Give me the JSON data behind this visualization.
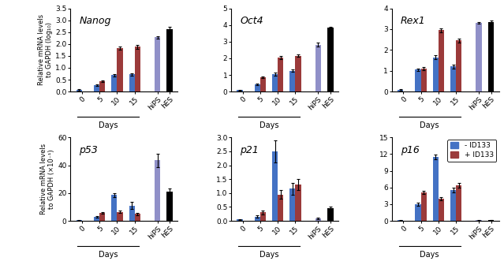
{
  "subplots": [
    {
      "title": "Nanog",
      "ylabel": "Relative mRNA levels\nto GAPDH (log₁₀)",
      "ylim": [
        0,
        3.5
      ],
      "yticks": [
        0.0,
        0.5,
        1.0,
        1.5,
        2.0,
        2.5,
        3.0,
        3.5
      ],
      "bar_groups": [
        {
          "label": "0",
          "minus": 0.08,
          "plus": null,
          "minus_err": 0.04,
          "plus_err": null
        },
        {
          "label": "5",
          "minus": 0.28,
          "plus": 0.43,
          "minus_err": 0.04,
          "plus_err": 0.04
        },
        {
          "label": "10",
          "minus": 0.7,
          "plus": 1.82,
          "minus_err": 0.05,
          "plus_err": 0.07
        },
        {
          "label": "15",
          "minus": 0.73,
          "plus": 1.88,
          "minus_err": 0.05,
          "plus_err": 0.07
        },
        {
          "label": "hiPS",
          "minus": 2.28,
          "plus": null,
          "minus_err": 0.04,
          "plus_err": null
        },
        {
          "label": "hES",
          "minus": 2.63,
          "plus": null,
          "minus_err": 0.08,
          "plus_err": null
        }
      ],
      "row": 0,
      "col": 0
    },
    {
      "title": "Oct4",
      "ylabel": null,
      "ylim": [
        0,
        5.0
      ],
      "yticks": [
        0.0,
        1.0,
        2.0,
        3.0,
        4.0,
        5.0
      ],
      "bar_groups": [
        {
          "label": "0",
          "minus": 0.08,
          "plus": null,
          "minus_err": 0.03,
          "plus_err": null
        },
        {
          "label": "5",
          "minus": 0.43,
          "plus": 0.88,
          "minus_err": 0.05,
          "plus_err": 0.05
        },
        {
          "label": "10",
          "minus": 1.05,
          "plus": 2.05,
          "minus_err": 0.1,
          "plus_err": 0.1
        },
        {
          "label": "15",
          "minus": 1.25,
          "plus": 2.15,
          "minus_err": 0.08,
          "plus_err": 0.08
        },
        {
          "label": "hiPS",
          "minus": 2.82,
          "plus": null,
          "minus_err": 0.1,
          "plus_err": null
        },
        {
          "label": "hES",
          "minus": 3.82,
          "plus": null,
          "minus_err": 0.08,
          "plus_err": null
        }
      ],
      "row": 0,
      "col": 1
    },
    {
      "title": "Rex1",
      "ylabel": null,
      "ylim": [
        0,
        4.0
      ],
      "yticks": [
        0.0,
        1.0,
        2.0,
        3.0,
        4.0
      ],
      "bar_groups": [
        {
          "label": "0",
          "minus": 0.08,
          "plus": null,
          "minus_err": 0.03,
          "plus_err": null
        },
        {
          "label": "5",
          "minus": 1.05,
          "plus": 1.1,
          "minus_err": 0.07,
          "plus_err": 0.07
        },
        {
          "label": "10",
          "minus": 1.65,
          "plus": 2.95,
          "minus_err": 0.08,
          "plus_err": 0.1
        },
        {
          "label": "15",
          "minus": 1.2,
          "plus": 2.45,
          "minus_err": 0.08,
          "plus_err": 0.1
        },
        {
          "label": "hiPS",
          "minus": 3.3,
          "plus": null,
          "minus_err": 0.05,
          "plus_err": null
        },
        {
          "label": "hES",
          "minus": 3.35,
          "plus": null,
          "minus_err": 0.07,
          "plus_err": null
        }
      ],
      "row": 0,
      "col": 2
    },
    {
      "title": "p53",
      "ylabel": "Relative mRNA levels\nto GAPDH (×10⁻¹)",
      "ylim": [
        0,
        60
      ],
      "yticks": [
        0,
        20,
        40,
        60
      ],
      "bar_groups": [
        {
          "label": "0",
          "minus": 0.5,
          "plus": null,
          "minus_err": 0.3,
          "plus_err": null
        },
        {
          "label": "5",
          "minus": 3.0,
          "plus": 5.5,
          "minus_err": 0.5,
          "plus_err": 0.5
        },
        {
          "label": "10",
          "minus": 18.5,
          "plus": 6.5,
          "minus_err": 1.5,
          "plus_err": 0.8
        },
        {
          "label": "15",
          "minus": 11.0,
          "plus": 5.0,
          "minus_err": 2.5,
          "plus_err": 0.8
        },
        {
          "label": "hiPS",
          "minus": 43.5,
          "plus": null,
          "minus_err": 5.0,
          "plus_err": null
        },
        {
          "label": "hES",
          "minus": 21.0,
          "plus": null,
          "minus_err": 2.5,
          "plus_err": null
        }
      ],
      "row": 1,
      "col": 0
    },
    {
      "title": "p21",
      "ylabel": null,
      "ylim": [
        0,
        3.0
      ],
      "yticks": [
        0.0,
        0.5,
        1.0,
        1.5,
        2.0,
        2.5,
        3.0
      ],
      "bar_groups": [
        {
          "label": "0",
          "minus": 0.05,
          "plus": null,
          "minus_err": 0.02,
          "plus_err": null
        },
        {
          "label": "5",
          "minus": 0.15,
          "plus": 0.3,
          "minus_err": 0.05,
          "plus_err": 0.07
        },
        {
          "label": "10",
          "minus": 2.5,
          "plus": 0.95,
          "minus_err": 0.4,
          "plus_err": 0.15
        },
        {
          "label": "15",
          "minus": 1.15,
          "plus": 1.3,
          "minus_err": 0.2,
          "plus_err": 0.2
        },
        {
          "label": "hiPS",
          "minus": 0.08,
          "plus": null,
          "minus_err": 0.02,
          "plus_err": null
        },
        {
          "label": "hES",
          "minus": 0.45,
          "plus": null,
          "minus_err": 0.06,
          "plus_err": null
        }
      ],
      "row": 1,
      "col": 1
    },
    {
      "title": "p16",
      "ylabel": null,
      "ylim": [
        0,
        15
      ],
      "yticks": [
        0,
        3,
        6,
        9,
        12,
        15
      ],
      "bar_groups": [
        {
          "label": "0",
          "minus": 0.1,
          "plus": null,
          "minus_err": 0.03,
          "plus_err": null
        },
        {
          "label": "5",
          "minus": 3.0,
          "plus": 5.1,
          "minus_err": 0.3,
          "plus_err": 0.3
        },
        {
          "label": "10",
          "minus": 11.5,
          "plus": 4.0,
          "minus_err": 0.4,
          "plus_err": 0.3
        },
        {
          "label": "15",
          "minus": 5.5,
          "plus": 6.4,
          "minus_err": 0.4,
          "plus_err": 0.4
        },
        {
          "label": "hiPS",
          "minus": 0.1,
          "plus": null,
          "minus_err": 0.03,
          "plus_err": null
        },
        {
          "label": "hES",
          "minus": 0.1,
          "plus": null,
          "minus_err": 0.02,
          "plus_err": null
        }
      ],
      "row": 1,
      "col": 2
    }
  ],
  "color_minus": "#4472C4",
  "color_plus": "#9B3A3A",
  "color_hips": "#9090C8",
  "color_hes_black": "#000000",
  "bar_width": 0.32,
  "legend_labels": [
    "- ID133",
    "+ ID133"
  ],
  "xlabel_days": "Days",
  "figsize": [
    6.39,
    3.5
  ],
  "dpi": 100
}
